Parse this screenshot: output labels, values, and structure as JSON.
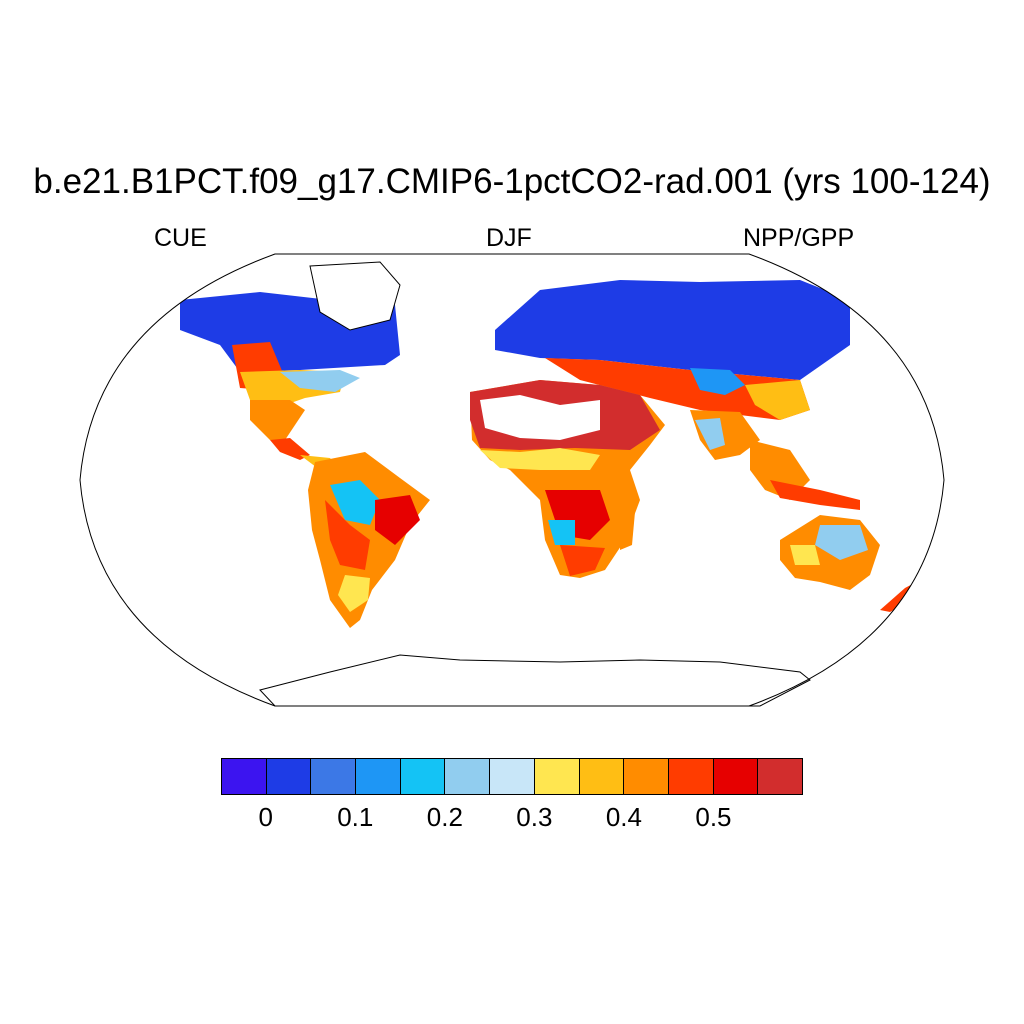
{
  "title": "b.e21.B1PCT.f09_g17.CMIP6-1pctCO2-rad.001 (yrs 100-124)",
  "left_label": "CUE",
  "center_label": "DJF",
  "right_label": "NPP/GPP",
  "projection": "Robinson",
  "colorbar": {
    "colors": [
      "#3c14f0",
      "#1e3ce6",
      "#3c78e6",
      "#1e96f5",
      "#14c3f5",
      "#91cdef",
      "#c8e6f8",
      "#ffe650",
      "#ffbe14",
      "#ff8c00",
      "#ff3c00",
      "#e60000",
      "#d22d2d"
    ],
    "tick_labels": [
      "0",
      "0.1",
      "0.2",
      "0.3",
      "0.4",
      "0.5"
    ],
    "tick_values": [
      0,
      0.1,
      0.2,
      0.3,
      0.4,
      0.5
    ],
    "interval": 0.05
  }
}
